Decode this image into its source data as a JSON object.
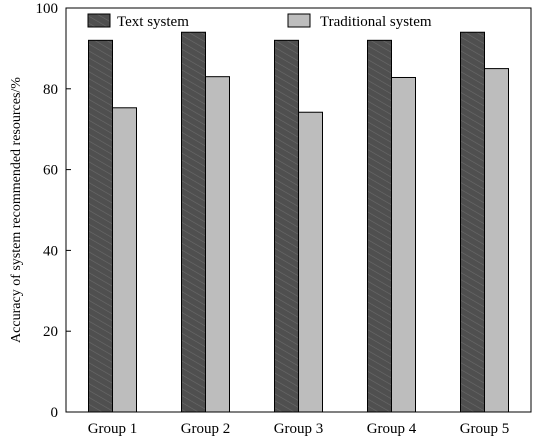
{
  "chart_data": {
    "type": "bar",
    "categories": [
      "Group 1",
      "Group 2",
      "Group 3",
      "Group 4",
      "Group 5"
    ],
    "series": [
      {
        "name": "Text system",
        "values": [
          92,
          94,
          92,
          92,
          94
        ],
        "color": "#4f4f4f"
      },
      {
        "name": "Traditional system",
        "values": [
          75.3,
          83,
          74.2,
          82.8,
          85
        ],
        "color": "#bdbdbd"
      }
    ],
    "ylabel": "Accuracy of system recommended resources/%",
    "xlabel": "",
    "ylim": [
      0,
      100
    ],
    "yticks": [
      0,
      20,
      40,
      60,
      80,
      100
    ],
    "grid": false,
    "legend_position": "top"
  }
}
